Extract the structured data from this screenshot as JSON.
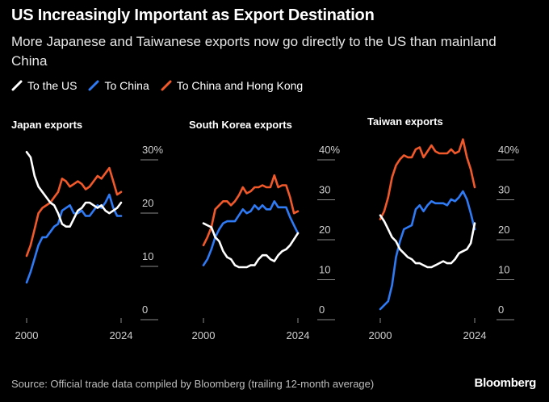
{
  "title": "US Increasingly Important as Export Destination",
  "subtitle": "More Japanese and Taiwanese exports now go directly to the US than mainland China",
  "legend": [
    {
      "label": "To the US",
      "color": "#ffffff"
    },
    {
      "label": "To China",
      "color": "#2f7bf5"
    },
    {
      "label": "To China and Hong Kong",
      "color": "#f2592a"
    }
  ],
  "source": "Source: Official trade data compiled by Bloomberg (trailing 12-month average)",
  "brand": "Bloomberg",
  "chart_data": [
    {
      "type": "line",
      "title": "Japan exports",
      "ylim": [
        0,
        30
      ],
      "yticks": [
        0,
        10,
        20,
        30
      ],
      "ytick_labels": [
        "0",
        "10",
        "20",
        "30%"
      ],
      "xticks": [
        2000,
        2024
      ],
      "xtick_labels": [
        "2000",
        "2024"
      ],
      "grid": false,
      "series": [
        {
          "name": "To the US",
          "color": "#ffffff",
          "x": [
            2000,
            2001,
            2002,
            2003,
            2004,
            2005,
            2006,
            2007,
            2008,
            2009,
            2010,
            2011,
            2012,
            2013,
            2014,
            2015,
            2016,
            2017,
            2018,
            2019,
            2020,
            2021,
            2022,
            2023,
            2024
          ],
          "y": [
            29.5,
            28.5,
            25,
            23,
            22,
            21,
            20,
            19.5,
            18,
            16,
            15.5,
            15.5,
            17,
            18.5,
            19,
            20,
            20,
            19.5,
            19,
            19.5,
            18.5,
            18,
            18.5,
            19,
            20
          ]
        },
        {
          "name": "To China",
          "color": "#2f7bf5",
          "x": [
            2000,
            2001,
            2002,
            2003,
            2004,
            2005,
            2006,
            2007,
            2008,
            2009,
            2010,
            2011,
            2012,
            2013,
            2014,
            2015,
            2016,
            2017,
            2018,
            2019,
            2020,
            2021,
            2022,
            2023,
            2024
          ],
          "y": [
            5,
            7,
            9.5,
            12,
            13.5,
            13.5,
            14.5,
            15.5,
            16,
            18.5,
            19,
            19.5,
            18,
            18,
            18.5,
            17.5,
            17.5,
            18.5,
            19.5,
            19,
            20,
            21.5,
            19,
            17.5,
            17.5
          ]
        },
        {
          "name": "To China and Hong Kong",
          "color": "#f2592a",
          "x": [
            2000,
            2001,
            2002,
            2003,
            2004,
            2005,
            2006,
            2007,
            2008,
            2009,
            2010,
            2011,
            2012,
            2013,
            2014,
            2015,
            2016,
            2017,
            2018,
            2019,
            2020,
            2021,
            2022,
            2023,
            2024
          ],
          "y": [
            10,
            12,
            15,
            18,
            19,
            19.5,
            20,
            21,
            22,
            24.5,
            24,
            23,
            23.5,
            24,
            23.5,
            22.5,
            23,
            24,
            25,
            24.5,
            25.5,
            26.5,
            24,
            21.5,
            22
          ]
        }
      ]
    },
    {
      "type": "line",
      "title": "South Korea exports",
      "ylim": [
        0,
        40
      ],
      "yticks": [
        0,
        10,
        20,
        30,
        40
      ],
      "ytick_labels": [
        "0",
        "10",
        "20",
        "30",
        "40%"
      ],
      "xticks": [
        2000,
        2024
      ],
      "xtick_labels": [
        "2000",
        "2024"
      ],
      "grid": false,
      "series": [
        {
          "name": "To the US",
          "color": "#ffffff",
          "x": [
            2000,
            2001,
            2002,
            2003,
            2004,
            2005,
            2006,
            2007,
            2008,
            2009,
            2010,
            2011,
            2012,
            2013,
            2014,
            2015,
            2016,
            2017,
            2018,
            2019,
            2020,
            2021,
            2022,
            2023,
            2024
          ],
          "y": [
            21.5,
            21,
            20.5,
            18,
            17,
            14.5,
            13,
            12.5,
            11,
            10.5,
            10.5,
            10.5,
            11,
            11,
            12.5,
            13.5,
            13.5,
            12.5,
            12,
            13.5,
            14.5,
            15,
            16,
            17.5,
            19
          ]
        },
        {
          "name": "To China",
          "color": "#2f7bf5",
          "x": [
            2000,
            2001,
            2002,
            2003,
            2004,
            2005,
            2006,
            2007,
            2008,
            2009,
            2010,
            2011,
            2012,
            2013,
            2014,
            2015,
            2016,
            2017,
            2018,
            2019,
            2020,
            2021,
            2022,
            2023,
            2024
          ],
          "y": [
            11,
            12.5,
            15,
            18,
            20,
            21.5,
            22,
            22,
            22,
            23.5,
            25,
            24,
            24.5,
            26,
            25,
            26,
            25,
            25,
            27,
            25.5,
            25.5,
            25.5,
            23,
            21,
            19
          ]
        },
        {
          "name": "To China and Hong Kong",
          "color": "#f2592a",
          "x": [
            2000,
            2001,
            2002,
            2003,
            2004,
            2005,
            2006,
            2007,
            2008,
            2009,
            2010,
            2011,
            2012,
            2013,
            2014,
            2015,
            2016,
            2017,
            2018,
            2019,
            2020,
            2021,
            2022,
            2023,
            2024
          ],
          "y": [
            16,
            18,
            20.5,
            25,
            26,
            27,
            27,
            26,
            27,
            28.5,
            30.5,
            29,
            29.5,
            30.5,
            30.5,
            31,
            30.5,
            30.5,
            33.5,
            30.5,
            31,
            31,
            28,
            24,
            24.5
          ]
        }
      ]
    },
    {
      "type": "line",
      "title": "Taiwan exports",
      "ylim": [
        0,
        40
      ],
      "yticks": [
        0,
        10,
        20,
        30,
        40
      ],
      "ytick_labels": [
        "0",
        "10",
        "20",
        "30",
        "40%"
      ],
      "xticks": [
        2000,
        2024
      ],
      "xtick_labels": [
        "2000",
        "2024"
      ],
      "grid": false,
      "series": [
        {
          "name": "To the US",
          "color": "#ffffff",
          "x": [
            2000,
            2001,
            2002,
            2003,
            2004,
            2005,
            2006,
            2007,
            2008,
            2009,
            2010,
            2011,
            2012,
            2013,
            2014,
            2015,
            2016,
            2017,
            2018,
            2019,
            2020,
            2021,
            2022,
            2023,
            2024
          ],
          "y": [
            23.5,
            22,
            20,
            18,
            17,
            15,
            14,
            13,
            12.5,
            11.5,
            11.5,
            11,
            10.5,
            10.5,
            11,
            11.5,
            12,
            11.5,
            11.5,
            12.5,
            14,
            14.5,
            15,
            16.5,
            21.5
          ]
        },
        {
          "name": "To China",
          "color": "#2f7bf5",
          "x": [
            2000,
            2001,
            2002,
            2003,
            2004,
            2005,
            2006,
            2007,
            2008,
            2009,
            2010,
            2011,
            2012,
            2013,
            2014,
            2015,
            2016,
            2017,
            2018,
            2019,
            2020,
            2021,
            2022,
            2023,
            2024
          ],
          "y": [
            0,
            1,
            2,
            6,
            13,
            17,
            20,
            20.5,
            21,
            25,
            26,
            24.5,
            26,
            27,
            26.5,
            26.5,
            26.5,
            26,
            27.5,
            27,
            28,
            29.5,
            27.5,
            24,
            20
          ]
        },
        {
          "name": "To China and Hong Kong",
          "color": "#f2592a",
          "x": [
            2000,
            2001,
            2002,
            2003,
            2004,
            2005,
            2006,
            2007,
            2008,
            2009,
            2010,
            2011,
            2012,
            2013,
            2014,
            2015,
            2016,
            2017,
            2018,
            2019,
            2020,
            2021,
            2022,
            2023,
            2024
          ],
          "y": [
            22.5,
            24.5,
            28,
            33,
            36,
            37.5,
            38.5,
            38,
            38,
            40,
            40.5,
            38,
            39.5,
            41,
            39.5,
            39,
            39,
            39,
            40,
            39,
            39.5,
            42.5,
            38,
            35,
            30.5
          ]
        }
      ]
    }
  ]
}
